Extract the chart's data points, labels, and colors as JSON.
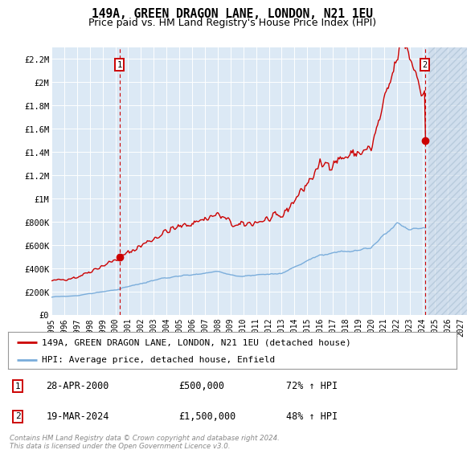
{
  "title": "149A, GREEN DRAGON LANE, LONDON, N21 1EU",
  "subtitle": "Price paid vs. HM Land Registry's House Price Index (HPI)",
  "ylim": [
    0,
    2300000
  ],
  "yticks": [
    0,
    200000,
    400000,
    600000,
    800000,
    1000000,
    1200000,
    1400000,
    1600000,
    1800000,
    2000000,
    2200000
  ],
  "ytick_labels": [
    "£0",
    "£200K",
    "£400K",
    "£600K",
    "£800K",
    "£1M",
    "£1.2M",
    "£1.4M",
    "£1.6M",
    "£1.8M",
    "£2M",
    "£2.2M"
  ],
  "xlim_start": 1995.0,
  "xlim_end": 2027.5,
  "xticks": [
    1995,
    1996,
    1997,
    1998,
    1999,
    2000,
    2001,
    2002,
    2003,
    2004,
    2005,
    2006,
    2007,
    2008,
    2009,
    2010,
    2011,
    2012,
    2013,
    2014,
    2015,
    2016,
    2017,
    2018,
    2019,
    2020,
    2021,
    2022,
    2023,
    2024,
    2025,
    2026,
    2027
  ],
  "bg_color": "#dce9f5",
  "hatch_start": 2024.5,
  "sale1_x": 2000.32,
  "sale1_y": 500000,
  "sale2_x": 2024.21,
  "sale2_y": 1500000,
  "red_line_color": "#cc0000",
  "blue_line_color": "#7aaddb",
  "legend_label1": "149A, GREEN DRAGON LANE, LONDON, N21 1EU (detached house)",
  "legend_label2": "HPI: Average price, detached house, Enfield",
  "annotation1_label": "1",
  "annotation1_date": "28-APR-2000",
  "annotation1_price": "£500,000",
  "annotation1_hpi": "72% ↑ HPI",
  "annotation2_label": "2",
  "annotation2_date": "19-MAR-2024",
  "annotation2_price": "£1,500,000",
  "annotation2_hpi": "48% ↑ HPI",
  "footer_text": "Contains HM Land Registry data © Crown copyright and database right 2024.\nThis data is licensed under the Open Government Licence v3.0."
}
